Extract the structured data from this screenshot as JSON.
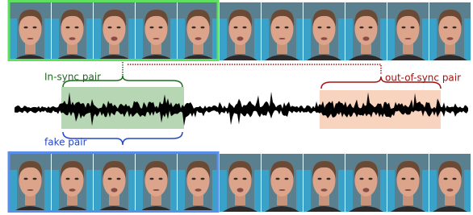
{
  "labels": {
    "in_sync": "In-sync pair",
    "out_of_sync": "out-of-sync pair",
    "fake": "fake pair"
  }
}
